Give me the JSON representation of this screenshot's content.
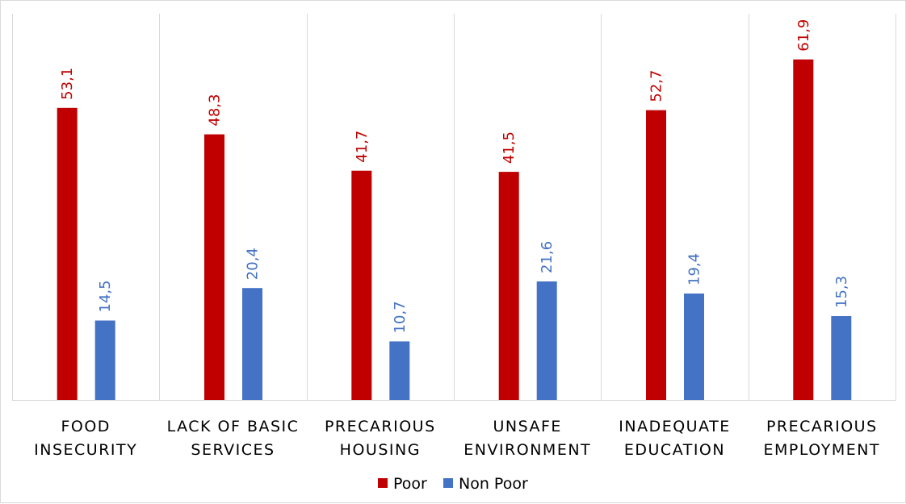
{
  "chart_data": {
    "type": "bar",
    "categories": [
      [
        "FOOD",
        "INSECURITY"
      ],
      [
        "LACK OF BASIC",
        "SERVICES"
      ],
      [
        "PRECARIOUS",
        "HOUSING"
      ],
      [
        "UNSAFE",
        "ENVIRONMENT"
      ],
      [
        "INADEQUATE",
        "EDUCATION"
      ],
      [
        "PRECARIOUS",
        "EMPLOYMENT"
      ]
    ],
    "series": [
      {
        "name": "Poor",
        "color": "#C00000",
        "values": [
          53.1,
          48.3,
          41.7,
          41.5,
          52.7,
          61.9
        ],
        "labels": [
          "53,1",
          "48,3",
          "41,7",
          "41,5",
          "52,7",
          "61,9"
        ]
      },
      {
        "name": "Non Poor",
        "color": "#4472C4",
        "values": [
          14.5,
          20.4,
          10.7,
          21.6,
          19.4,
          15.3
        ],
        "labels": [
          "14,5",
          "20,4",
          "10,7",
          "21,6",
          "19,4",
          "15,3"
        ]
      }
    ],
    "ylim": [
      0,
      66
    ],
    "grid": "vertical category separators",
    "legend": "bottom-center"
  }
}
